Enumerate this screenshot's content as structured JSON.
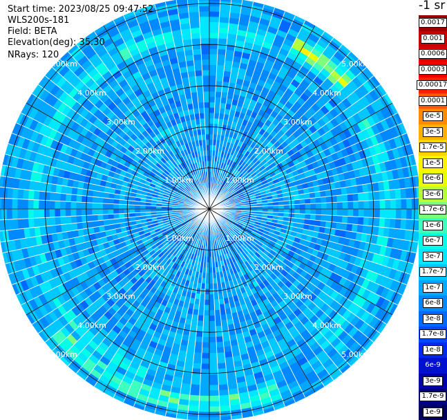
{
  "header": {
    "start_time": "Start time: 2023/08/25 09:47:52",
    "instrument": "WLS200s-181",
    "field": "Field: BETA",
    "elevation": "Elevation(deg): 35.30",
    "nrays": "NRays: 120"
  },
  "colorbar": {
    "title": "-1 sr",
    "levels": [
      {
        "label": "0.0017",
        "color": "#9b0000",
        "style": "box"
      },
      {
        "label": "0.001",
        "color": "#c80000",
        "style": "box"
      },
      {
        "label": "0.0006",
        "color": "#e10000",
        "style": "box"
      },
      {
        "label": "0.0003",
        "color": "#f00000",
        "style": "box"
      },
      {
        "label": "0.00017",
        "color": "#ff2000",
        "style": "box"
      },
      {
        "label": "0.0001",
        "color": "#ff5a00",
        "style": "box"
      },
      {
        "label": "6e-5",
        "color": "#ff8a00",
        "style": "box"
      },
      {
        "label": "3e-5",
        "color": "#ffb000",
        "style": "box"
      },
      {
        "label": "1.7e-5",
        "color": "#ffd400",
        "style": "box"
      },
      {
        "label": "1e-5",
        "color": "#fff200",
        "style": "box"
      },
      {
        "label": "6e-6",
        "color": "#e8ff00",
        "style": "box"
      },
      {
        "label": "3e-6",
        "color": "#b4ff3a",
        "style": "box"
      },
      {
        "label": "1.7e-6",
        "color": "#7dff7d",
        "style": "box"
      },
      {
        "label": "1e-6",
        "color": "#3cffc0",
        "style": "box"
      },
      {
        "label": "6e-7",
        "color": "#00ffe6",
        "style": "box"
      },
      {
        "label": "3e-7",
        "color": "#00e8ff",
        "style": "box"
      },
      {
        "label": "1.7e-7",
        "color": "#00c8ff",
        "style": "box"
      },
      {
        "label": "1e-7",
        "color": "#00a8ff",
        "style": "box"
      },
      {
        "label": "6e-8",
        "color": "#0088ff",
        "style": "box"
      },
      {
        "label": "3e-8",
        "color": "#0068ff",
        "style": "box"
      },
      {
        "label": "1.7e-8",
        "color": "#0048ff",
        "style": "box"
      },
      {
        "label": "1e-8",
        "color": "#0028f0",
        "style": "box"
      },
      {
        "label": "6e-9",
        "color": "#0010d0",
        "style": "inv"
      },
      {
        "label": "3e-9",
        "color": "#0000a8",
        "style": "box"
      },
      {
        "label": "1.7e-9",
        "color": "#000080",
        "style": "box"
      },
      {
        "label": "1e-9",
        "color": "#00005a",
        "style": "box"
      }
    ]
  },
  "chart_data": {
    "type": "heatmap",
    "projection": "polar",
    "n_rays": 120,
    "grid": true,
    "range_rings_km": [
      1.0,
      2.0,
      3.0,
      4.0,
      5.0
    ],
    "ring_labels": [
      "1.00km",
      "2.00km",
      "3.00km",
      "4.00km",
      "5.00km"
    ],
    "max_range_km": 5.15,
    "spoke_bearings_deg": [
      0,
      30,
      60,
      90,
      120,
      150,
      180,
      210,
      240,
      270,
      300,
      330
    ],
    "legend": "right",
    "color_scale": "log",
    "colors": {
      "background": "#ffffff",
      "grid": "#000000",
      "ring_label": "#ffffff",
      "ray_gap": "#ffffff"
    }
  }
}
